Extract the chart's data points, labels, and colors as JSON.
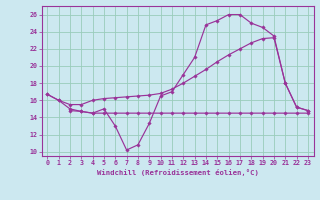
{
  "xlabel": "Windchill (Refroidissement éolien,°C)",
  "bg_color": "#cce8f0",
  "line_color": "#993399",
  "grid_color": "#99ccbb",
  "xlim": [
    -0.5,
    23.5
  ],
  "ylim": [
    9.5,
    27.0
  ],
  "yticks": [
    10,
    12,
    14,
    16,
    18,
    20,
    22,
    24,
    26
  ],
  "xticks": [
    0,
    1,
    2,
    3,
    4,
    5,
    6,
    7,
    8,
    9,
    10,
    11,
    12,
    13,
    14,
    15,
    16,
    17,
    18,
    19,
    20,
    21,
    22,
    23
  ],
  "line1_x": [
    0,
    1,
    2,
    3,
    4,
    5,
    6,
    7,
    8,
    9,
    10,
    11,
    12,
    13,
    14,
    15,
    16,
    17,
    18,
    19,
    20,
    21,
    22,
    23
  ],
  "line1_y": [
    16.7,
    16.0,
    15.0,
    14.7,
    14.5,
    15.0,
    13.0,
    10.2,
    10.8,
    13.3,
    16.5,
    17.0,
    19.0,
    21.0,
    24.8,
    25.3,
    26.0,
    26.0,
    25.0,
    24.5,
    23.5,
    18.0,
    15.2,
    14.8
  ],
  "line2_x": [
    0,
    1,
    2,
    3,
    4,
    5,
    6,
    7,
    8,
    9,
    10,
    11,
    12,
    13,
    14,
    15,
    16,
    17,
    18,
    19,
    20,
    21,
    22,
    23
  ],
  "line2_y": [
    16.7,
    16.0,
    15.5,
    15.5,
    16.0,
    16.2,
    16.3,
    16.4,
    16.5,
    16.6,
    16.8,
    17.3,
    18.0,
    18.8,
    19.6,
    20.5,
    21.3,
    22.0,
    22.7,
    23.2,
    23.3,
    18.0,
    15.2,
    14.8
  ],
  "line3_x": [
    2,
    3,
    4,
    5,
    6,
    7,
    8,
    9,
    10,
    11,
    12,
    13,
    14,
    15,
    16,
    17,
    18,
    19,
    20,
    21,
    22,
    23
  ],
  "line3_y": [
    14.8,
    14.7,
    14.5,
    14.5,
    14.5,
    14.5,
    14.5,
    14.5,
    14.5,
    14.5,
    14.5,
    14.5,
    14.5,
    14.5,
    14.5,
    14.5,
    14.5,
    14.5,
    14.5,
    14.5,
    14.5,
    14.5
  ]
}
